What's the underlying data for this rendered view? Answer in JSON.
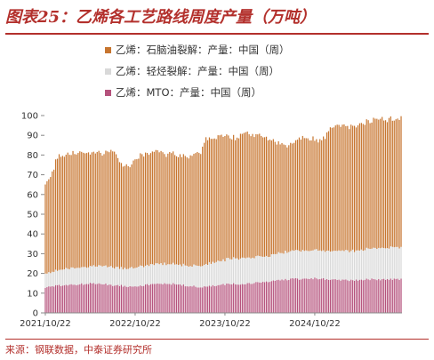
{
  "title": "图表25：乙烯各工艺路线周度产量（万吨）",
  "source": "来源：钢联数据，中泰证券研究所",
  "colors": {
    "accent": "#b3302c",
    "naphtha": "#c7752f",
    "ethane": "#d9d9d9",
    "mto": "#b5527c"
  },
  "chart_data": {
    "type": "bar",
    "stacked": true,
    "title": "图表25：乙烯各工艺路线周度产量（万吨）",
    "xlabel": "",
    "ylabel": "",
    "ylim": [
      0,
      100
    ],
    "yticks": [
      0,
      10,
      20,
      30,
      40,
      50,
      60,
      70,
      80,
      90,
      100
    ],
    "xticks": [
      "2021/10/22",
      "2022/10/22",
      "2023/10/22",
      "2024/10/22"
    ],
    "legend_position": "top-left",
    "grid": false,
    "series": [
      {
        "name": "乙烯：MTO：产量：中国（周）",
        "color": "#b5527c",
        "keypoints": [
          [
            0,
            13
          ],
          [
            10,
            14
          ],
          [
            30,
            15
          ],
          [
            40,
            14
          ],
          [
            50,
            13.5
          ],
          [
            70,
            15
          ],
          [
            90,
            13
          ],
          [
            105,
            14.5
          ],
          [
            120,
            15
          ],
          [
            140,
            17
          ],
          [
            156,
            17.5
          ],
          [
            170,
            16.5
          ],
          [
            190,
            17
          ],
          [
            206,
            17
          ]
        ]
      },
      {
        "name": "乙烯：轻烃裂解：产量：中国（周）",
        "color": "#d9d9d9",
        "keypoints": [
          [
            0,
            7
          ],
          [
            10,
            8
          ],
          [
            30,
            9
          ],
          [
            40,
            9
          ],
          [
            50,
            9.5
          ],
          [
            60,
            10
          ],
          [
            80,
            10
          ],
          [
            90,
            11
          ],
          [
            100,
            12
          ],
          [
            110,
            13
          ],
          [
            120,
            13
          ],
          [
            130,
            13
          ],
          [
            140,
            14
          ],
          [
            160,
            14.5
          ],
          [
            180,
            15
          ],
          [
            206,
            16.5
          ]
        ]
      },
      {
        "name": "乙烯：石脑油裂解：产量：中国（周）",
        "color": "#c7752f",
        "keypoints": [
          [
            0,
            45
          ],
          [
            2,
            47
          ],
          [
            4,
            50
          ],
          [
            6,
            55
          ],
          [
            8,
            58
          ],
          [
            20,
            58
          ],
          [
            30,
            57
          ],
          [
            40,
            58
          ],
          [
            45,
            52
          ],
          [
            50,
            52
          ],
          [
            52,
            55
          ],
          [
            60,
            57
          ],
          [
            70,
            56
          ],
          [
            80,
            55
          ],
          [
            90,
            58
          ],
          [
            92,
            63
          ],
          [
            100,
            63
          ],
          [
            106,
            63
          ],
          [
            110,
            60
          ],
          [
            115,
            64
          ],
          [
            120,
            62
          ],
          [
            130,
            59
          ],
          [
            140,
            53
          ],
          [
            150,
            58
          ],
          [
            160,
            55
          ],
          [
            165,
            63
          ],
          [
            180,
            63
          ],
          [
            190,
            65
          ],
          [
            196,
            65
          ],
          [
            200,
            65
          ],
          [
            206,
            65
          ]
        ]
      }
    ]
  }
}
